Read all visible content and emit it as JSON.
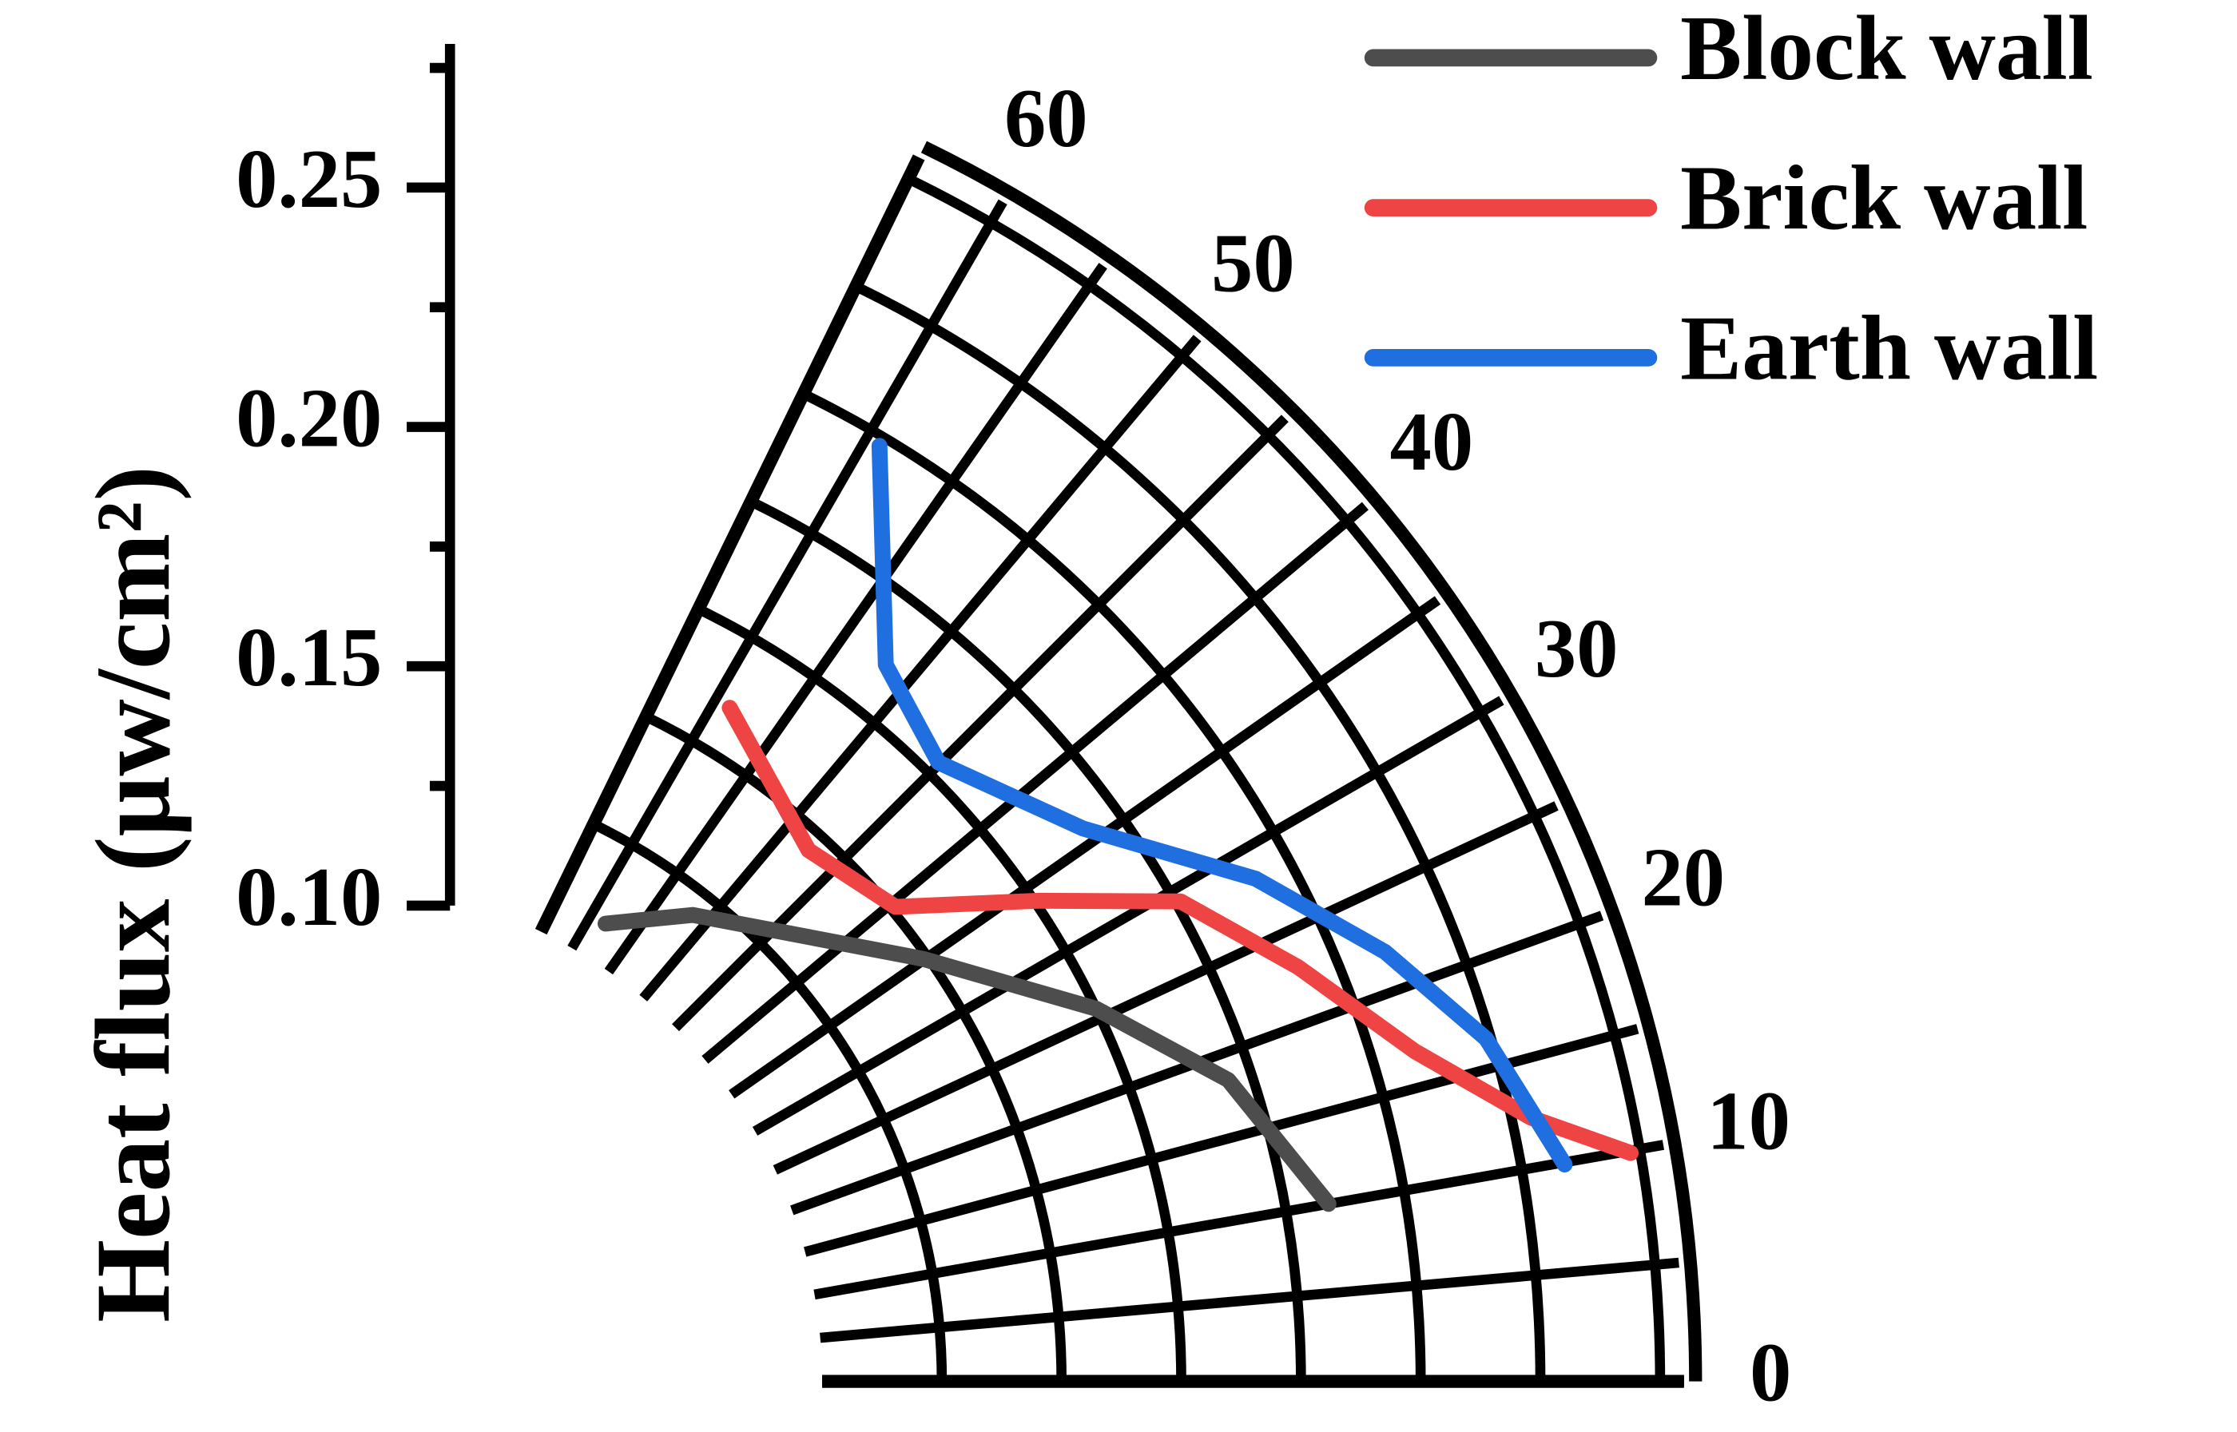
{
  "chart_data": {
    "type": "polar",
    "ylabel": "Heat flux (μw/cm²)",
    "xlim": [
      0,
      64
    ],
    "xticks": [
      0,
      10,
      20,
      30,
      40,
      50,
      60
    ],
    "xminor": [
      5,
      15,
      25,
      35,
      45,
      55
    ],
    "ylim": [
      0.1,
      0.28
    ],
    "yticks": [
      {
        "value": 0.1,
        "label": "0.10"
      },
      0.15,
      {
        "value": 0.2,
        "label": "0.20"
      },
      0.25
    ],
    "yminor": [
      0.125,
      0.175,
      0.225,
      0.275
    ],
    "grid": true,
    "legend": "upper right",
    "series": [
      {
        "name": "Block wall",
        "color": "#4d4d4d",
        "x": [
          58.2,
          51.5,
          35.1,
          25.7,
          18.4,
          10.0
        ],
        "values": [
          0.108,
          0.12,
          0.149,
          0.175,
          0.195,
          0.209
        ]
      },
      {
        "name": "Brick wall",
        "color": "#ef4444",
        "x": [
          58.8,
          47.5,
          39.6,
          33.8,
          29.2,
          23.0,
          16.8,
          12.3,
          9.9
        ],
        "values": [
          0.16,
          0.146,
          0.151,
          0.176,
          0.201,
          0.217,
          0.234,
          0.254,
          0.273
        ]
      },
      {
        "name": "Earth wall",
        "color": "#1f6fe0",
        "x": [
          59.2,
          51.8,
          45.1,
          36.0,
          28.3,
          22.0,
          16.4,
          9.9
        ],
        "values": [
          0.223,
          0.186,
          0.178,
          0.192,
          0.217,
          0.235,
          0.249,
          0.259
        ]
      }
    ]
  }
}
